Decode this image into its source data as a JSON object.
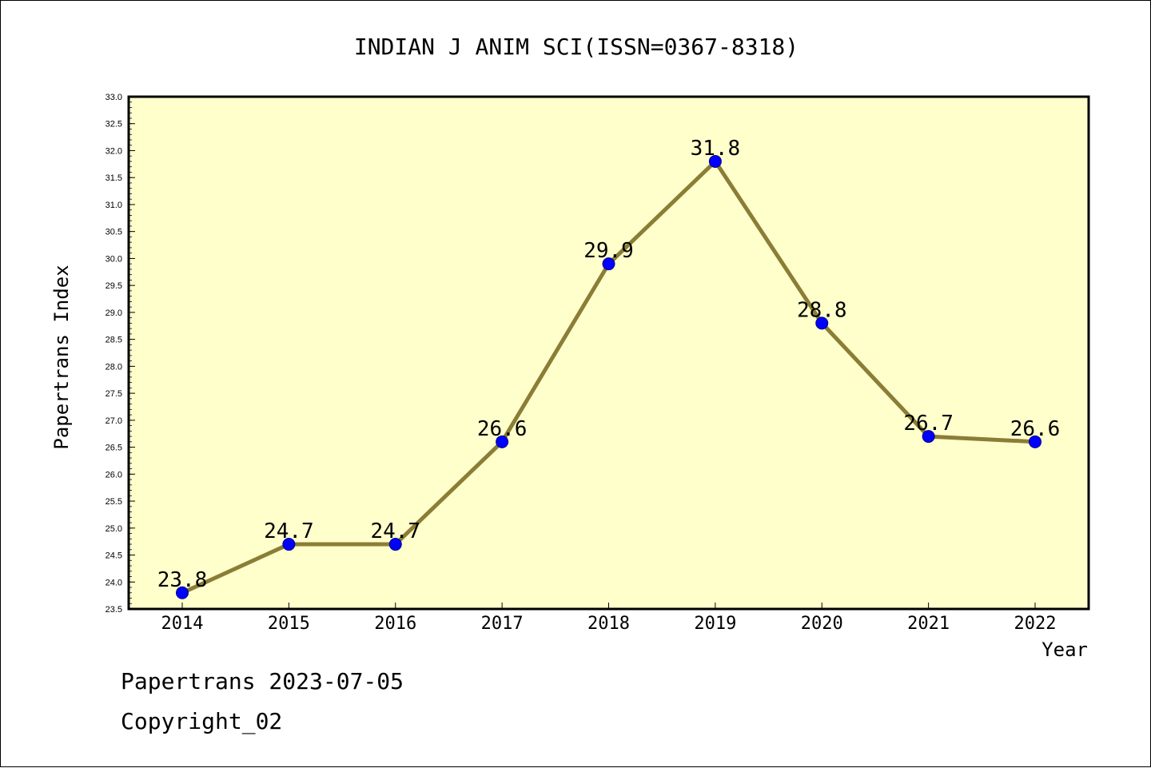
{
  "colors": {
    "plot_background": "#ffffcc",
    "line": "#8b7d35",
    "marker": "#0000ff",
    "marker_edge": "#00008b"
  },
  "chart_data": {
    "type": "line",
    "title": "INDIAN J ANIM SCI(ISSN=0367-8318)",
    "xlabel": "Year",
    "ylabel": "Papertrans Index",
    "categories": [
      "2014",
      "2015",
      "2016",
      "2017",
      "2018",
      "2019",
      "2020",
      "2021",
      "2022"
    ],
    "series": [
      {
        "values": [
          23.8,
          24.7,
          24.7,
          26.6,
          29.9,
          31.8,
          28.8,
          26.7,
          26.6
        ]
      }
    ],
    "data_labels": [
      "23.8",
      "24.7",
      "24.7",
      "26.6",
      "29.9",
      "31.8",
      "28.8",
      "26.7",
      "26.6"
    ],
    "ylim": [
      23.5,
      33.0
    ],
    "yticks": [
      "23.5",
      "24.0",
      "24.5",
      "25.0",
      "25.5",
      "26.0",
      "26.5",
      "27.0",
      "27.5",
      "28.0",
      "28.5",
      "29.0",
      "29.5",
      "30.0",
      "30.5",
      "31.0",
      "31.5",
      "32.0",
      "32.5",
      "33.0"
    ],
    "grid": false,
    "legend": "none"
  },
  "footer": {
    "line1": "Papertrans 2023-07-05",
    "line2": "Copyright_02"
  }
}
